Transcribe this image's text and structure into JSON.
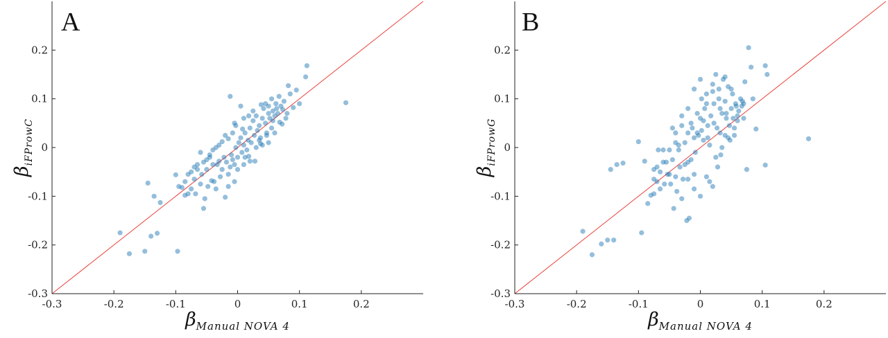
{
  "chart_data": [
    {
      "type": "scatter",
      "panel_label": "A",
      "xlabel": "β",
      "xlabel_sub": "Manual NOVA 4",
      "ylabel": "β",
      "ylabel_sub": "iFProwC",
      "xlim": [
        -0.3,
        0.3
      ],
      "ylim": [
        -0.3,
        0.3
      ],
      "xticks": [
        "-0.3",
        "-0.2",
        "-0.1",
        "0",
        "0.1",
        "0.2"
      ],
      "yticks": [
        "-0.3",
        "-0.2",
        "-0.1",
        "0",
        "0.1",
        "0.2"
      ],
      "reference_line": "y = x",
      "colors": {
        "points": "#1f77b4",
        "reference_line": "#e8413c"
      },
      "points": [
        [
          -0.19,
          -0.175
        ],
        [
          -0.175,
          -0.218
        ],
        [
          -0.15,
          -0.213
        ],
        [
          -0.145,
          -0.073
        ],
        [
          -0.14,
          -0.182
        ],
        [
          -0.135,
          -0.1
        ],
        [
          -0.13,
          -0.176
        ],
        [
          -0.125,
          -0.113
        ],
        [
          -0.1,
          -0.056
        ],
        [
          -0.097,
          -0.213
        ],
        [
          -0.09,
          -0.082
        ],
        [
          -0.085,
          -0.098
        ],
        [
          -0.08,
          -0.095
        ],
        [
          -0.075,
          -0.085
        ],
        [
          -0.07,
          -0.065
        ],
        [
          -0.068,
          -0.095
        ],
        [
          -0.065,
          -0.035
        ],
        [
          -0.06,
          -0.075
        ],
        [
          -0.058,
          -0.055
        ],
        [
          -0.055,
          -0.125
        ],
        [
          -0.053,
          -0.105
        ],
        [
          -0.05,
          -0.045
        ],
        [
          -0.048,
          -0.08
        ],
        [
          -0.045,
          -0.02
        ],
        [
          -0.042,
          -0.068
        ],
        [
          -0.04,
          -0.035
        ],
        [
          -0.038,
          -0.07
        ],
        [
          -0.035,
          -0.085
        ],
        [
          -0.033,
          -0.035
        ],
        [
          -0.03,
          -0.028
        ],
        [
          -0.028,
          -0.06
        ],
        [
          -0.025,
          -0.045
        ],
        [
          -0.022,
          -0.02
        ],
        [
          -0.02,
          -0.102
        ],
        [
          -0.018,
          -0.03
        ],
        [
          -0.015,
          -0.08
        ],
        [
          -0.012,
          -0.04
        ],
        [
          -0.01,
          -0.015
        ],
        [
          -0.008,
          -0.025
        ],
        [
          -0.005,
          -0.035
        ],
        [
          -0.003,
          0.0
        ],
        [
          0.0,
          -0.02
        ],
        [
          0.002,
          0.01
        ],
        [
          0.005,
          0.02
        ],
        [
          0.007,
          -0.01
        ],
        [
          0.01,
          0.005
        ],
        [
          0.012,
          0.03
        ],
        [
          0.015,
          -0.005
        ],
        [
          0.017,
          0.015
        ],
        [
          0.02,
          0.04
        ],
        [
          0.022,
          0.01
        ],
        [
          0.025,
          0.055
        ],
        [
          0.027,
          0.025
        ],
        [
          0.03,
          0.065
        ],
        [
          0.032,
          0.035
        ],
        [
          0.035,
          0.045
        ],
        [
          0.037,
          0.02
        ],
        [
          0.04,
          0.06
        ],
        [
          0.042,
          0.08
        ],
        [
          0.045,
          0.05
        ],
        [
          0.047,
          0.03
        ],
        [
          0.05,
          0.085
        ],
        [
          0.052,
          0.06
        ],
        [
          0.055,
          0.1
        ],
        [
          0.057,
          0.075
        ],
        [
          0.06,
          0.065
        ],
        [
          0.062,
          0.09
        ],
        [
          0.065,
          0.07
        ],
        [
          0.067,
          0.105
        ],
        [
          0.07,
          0.085
        ],
        [
          0.075,
          0.095
        ],
        [
          0.078,
          0.06
        ],
        [
          0.082,
          0.127
        ],
        [
          0.085,
          0.11
        ],
        [
          0.09,
          0.082
        ],
        [
          0.095,
          0.118
        ],
        [
          0.1,
          0.09
        ],
        [
          0.11,
          0.145
        ],
        [
          0.112,
          0.168
        ],
        [
          0.175,
          0.092
        ],
        [
          -0.012,
          0.105
        ],
        [
          0.005,
          0.085
        ],
        [
          -0.005,
          0.05
        ],
        [
          0.008,
          0.038
        ],
        [
          -0.02,
          0.025
        ],
        [
          -0.03,
          0.005
        ],
        [
          -0.04,
          -0.005
        ],
        [
          -0.06,
          -0.01
        ],
        [
          -0.07,
          -0.04
        ],
        [
          -0.075,
          -0.05
        ],
        [
          -0.08,
          -0.055
        ],
        [
          -0.085,
          -0.07
        ],
        [
          -0.095,
          -0.08
        ],
        [
          0.028,
          -0.028
        ],
        [
          0.018,
          -0.018
        ],
        [
          0.012,
          -0.02
        ],
        [
          0.035,
          0.015
        ],
        [
          0.04,
          0.005
        ],
        [
          0.05,
          0.01
        ],
        [
          0.055,
          0.04
        ],
        [
          0.06,
          0.03
        ],
        [
          0.068,
          0.052
        ],
        [
          0.072,
          0.048
        ],
        [
          0.05,
          0.07
        ],
        [
          0.045,
          0.09
        ],
        [
          0.038,
          0.088
        ],
        [
          0.025,
          0.075
        ],
        [
          0.018,
          0.065
        ],
        [
          0.01,
          0.06
        ],
        [
          -0.003,
          0.045
        ],
        [
          -0.008,
          0.03
        ],
        [
          -0.015,
          0.018
        ],
        [
          -0.025,
          0.012
        ],
        [
          -0.035,
          0.0
        ],
        [
          -0.045,
          -0.015
        ],
        [
          -0.05,
          -0.025
        ],
        [
          -0.055,
          -0.03
        ],
        [
          -0.065,
          -0.045
        ],
        [
          -0.005,
          -0.07
        ],
        [
          -0.015,
          -0.055
        ],
        [
          0.0,
          -0.045
        ],
        [
          0.01,
          -0.035
        ],
        [
          0.02,
          -0.028
        ],
        [
          0.03,
          0.0
        ],
        [
          0.037,
          0.008
        ],
        [
          0.047,
          0.025
        ],
        [
          0.057,
          0.055
        ],
        [
          0.063,
          0.08
        ],
        [
          0.073,
          0.078
        ],
        [
          0.08,
          0.07
        ]
      ]
    },
    {
      "type": "scatter",
      "panel_label": "B",
      "xlabel": "β",
      "xlabel_sub": "Manual NOVA 4",
      "ylabel": "β",
      "ylabel_sub": "iFProwG",
      "xlim": [
        -0.3,
        0.3
      ],
      "ylim": [
        -0.3,
        0.3
      ],
      "xticks": [
        "-0.3",
        "-0.2",
        "-0.1",
        "0",
        "0.1",
        "0.2"
      ],
      "yticks": [
        "-0.3",
        "-0.2",
        "-0.1",
        "0",
        "0.1",
        "0.2"
      ],
      "reference_line": "y = x",
      "colors": {
        "points": "#1f77b4",
        "reference_line": "#e8413c"
      },
      "points": [
        [
          -0.19,
          -0.172
        ],
        [
          -0.175,
          -0.22
        ],
        [
          -0.16,
          -0.198
        ],
        [
          -0.15,
          -0.19
        ],
        [
          -0.14,
          -0.19
        ],
        [
          -0.145,
          -0.045
        ],
        [
          -0.135,
          -0.035
        ],
        [
          -0.125,
          -0.032
        ],
        [
          -0.1,
          0.012
        ],
        [
          -0.095,
          -0.175
        ],
        [
          -0.09,
          -0.028
        ],
        [
          -0.085,
          -0.115
        ],
        [
          -0.08,
          -0.098
        ],
        [
          -0.075,
          -0.095
        ],
        [
          -0.075,
          -0.065
        ],
        [
          -0.07,
          -0.04
        ],
        [
          -0.068,
          -0.005
        ],
        [
          -0.065,
          -0.085
        ],
        [
          -0.06,
          -0.005
        ],
        [
          -0.058,
          -0.075
        ],
        [
          -0.055,
          -0.03
        ],
        [
          -0.053,
          -0.055
        ],
        [
          -0.05,
          -0.055
        ],
        [
          -0.048,
          -0.075
        ],
        [
          -0.045,
          -0.025
        ],
        [
          -0.043,
          -0.125
        ],
        [
          -0.04,
          -0.06
        ],
        [
          -0.038,
          -0.09
        ],
        [
          -0.035,
          0.005
        ],
        [
          -0.033,
          -0.04
        ],
        [
          -0.03,
          -0.105
        ],
        [
          -0.028,
          -0.065
        ],
        [
          -0.025,
          -0.035
        ],
        [
          -0.022,
          -0.15
        ],
        [
          -0.02,
          -0.03
        ],
        [
          -0.018,
          -0.145
        ],
        [
          -0.015,
          -0.025
        ],
        [
          -0.013,
          0.04
        ],
        [
          -0.01,
          -0.055
        ],
        [
          -0.008,
          -0.01
        ],
        [
          -0.005,
          0.07
        ],
        [
          -0.003,
          0.025
        ],
        [
          0.0,
          0.06
        ],
        [
          0.002,
          0.1
        ],
        [
          0.005,
          0.055
        ],
        [
          0.007,
          0.08
        ],
        [
          0.01,
          0.11
        ],
        [
          0.012,
          0.02
        ],
        [
          0.015,
          -0.07
        ],
        [
          0.017,
          0.065
        ],
        [
          0.02,
          0.13
        ],
        [
          0.022,
          0.05
        ],
        [
          0.025,
          0.15
        ],
        [
          0.027,
          0.04
        ],
        [
          0.03,
          0.1
        ],
        [
          0.032,
          0.03
        ],
        [
          0.035,
          0.07
        ],
        [
          0.037,
          0.14
        ],
        [
          0.04,
          0.095
        ],
        [
          0.042,
          0.06
        ],
        [
          0.045,
          0.125
        ],
        [
          0.047,
          0.045
        ],
        [
          0.05,
          0.08
        ],
        [
          0.052,
          0.11
        ],
        [
          0.055,
          0.025
        ],
        [
          0.057,
          0.09
        ],
        [
          0.06,
          0.055
        ],
        [
          0.062,
          0.075
        ],
        [
          0.065,
          0.1
        ],
        [
          0.067,
          0.085
        ],
        [
          0.07,
          0.06
        ],
        [
          0.072,
          0.135
        ],
        [
          0.075,
          -0.045
        ],
        [
          0.078,
          0.205
        ],
        [
          0.082,
          0.165
        ],
        [
          0.085,
          0.1
        ],
        [
          0.09,
          0.038
        ],
        [
          0.105,
          0.168
        ],
        [
          0.105,
          -0.036
        ],
        [
          0.108,
          0.15
        ],
        [
          0.175,
          0.018
        ],
        [
          -0.04,
          0.01
        ],
        [
          -0.045,
          0.04
        ],
        [
          -0.035,
          -0.005
        ],
        [
          -0.025,
          0.01
        ],
        [
          -0.015,
          0.05
        ],
        [
          -0.005,
          0.03
        ],
        [
          0.005,
          0.015
        ],
        [
          0.015,
          0.005
        ],
        [
          0.025,
          -0.02
        ],
        [
          0.035,
          0.0
        ],
        [
          0.045,
          0.02
        ],
        [
          0.055,
          0.04
        ],
        [
          0.06,
          0.065
        ],
        [
          0.07,
          0.09
        ],
        [
          -0.06,
          -0.03
        ],
        [
          -0.065,
          -0.05
        ],
        [
          -0.07,
          -0.07
        ],
        [
          -0.075,
          -0.045
        ],
        [
          -0.02,
          -0.065
        ],
        [
          -0.01,
          -0.085
        ],
        [
          0.0,
          -0.1
        ],
        [
          0.01,
          -0.06
        ],
        [
          0.02,
          -0.08
        ],
        [
          0.028,
          -0.04
        ],
        [
          0.033,
          -0.015
        ],
        [
          0.04,
          0.025
        ],
        [
          0.048,
          0.015
        ],
        [
          0.053,
          0.06
        ],
        [
          0.058,
          0.085
        ],
        [
          -0.03,
          0.045
        ],
        [
          -0.02,
          0.08
        ],
        [
          -0.01,
          0.12
        ],
        [
          0.0,
          0.14
        ],
        [
          0.01,
          0.09
        ],
        [
          0.02,
          0.115
        ],
        [
          0.03,
          0.12
        ],
        [
          0.04,
          0.145
        ],
        [
          0.05,
          0.12
        ],
        [
          -0.05,
          -0.005
        ],
        [
          -0.04,
          0.03
        ],
        [
          -0.03,
          0.065
        ],
        [
          -0.02,
          0.03
        ],
        [
          -0.01,
          0.02
        ],
        [
          0.002,
          0.035
        ],
        [
          0.012,
          0.045
        ],
        [
          0.022,
          0.09
        ],
        [
          0.032,
          0.08
        ],
        [
          0.042,
          0.07
        ],
        [
          0.068,
          0.095
        ]
      ]
    }
  ]
}
